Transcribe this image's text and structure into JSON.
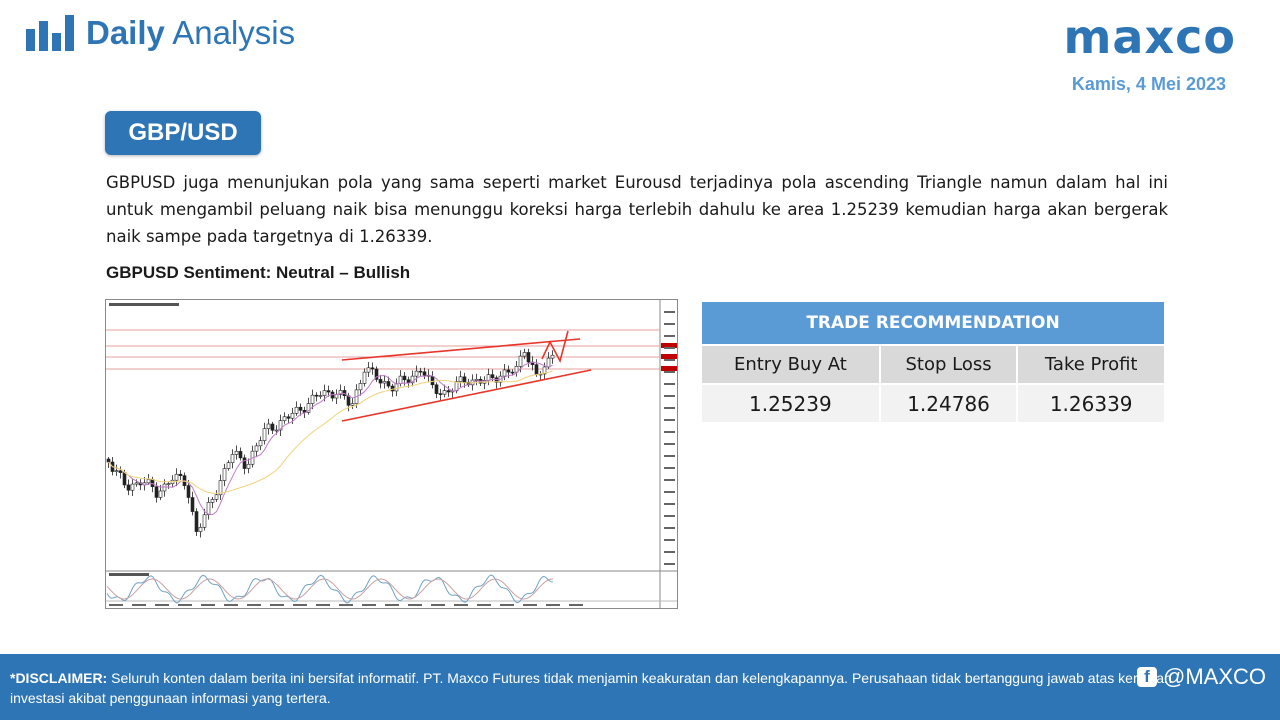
{
  "header": {
    "title_bold": "Daily",
    "title_rest": " Analysis",
    "brand_logo": "maxco",
    "date": "Kamis, 4 Mei 2023"
  },
  "pair": "GBP/USD",
  "analysis_text": "GBPUSD juga menunjukan pola yang sama seperti market Eurousd terjadinya pola ascending Triangle namun dalam hal ini untuk mengambil peluang naik bisa menunggu koreksi harga terlebih dahulu ke area 1.25239 kemudian harga akan bergerak naik sampe pada targetnya di 1.26339.",
  "sentiment": "GBPUSD Sentiment: Neutral – Bullish",
  "trade": {
    "heading": "TRADE RECOMMENDATION",
    "labels": [
      "Entry Buy At",
      "Stop Loss",
      "Take Profit"
    ],
    "values": [
      "1.25239",
      "1.24786",
      "1.26339"
    ]
  },
  "footer": {
    "disclaimer_label": "*DISCLAIMER:",
    "disclaimer_text": " Seluruh konten dalam berita ini bersifat informatif. PT. Maxco Futures tidak menjamin keakuratan dan kelengkapannya. Perusahaan tidak bertanggung jawab atas kerugian investasi akibat penggunaan informasi yang tertera.",
    "social_handle": "@MAXCO",
    "social_icon": "facebook-icon"
  },
  "colors": {
    "brand_blue": "#2e75b6",
    "light_blue": "#5b9bd5",
    "trend_line": "#e8352a"
  }
}
